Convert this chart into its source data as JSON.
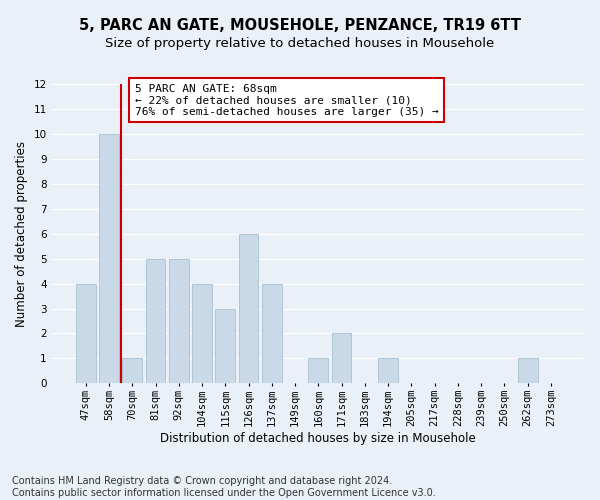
{
  "title": "5, PARC AN GATE, MOUSEHOLE, PENZANCE, TR19 6TT",
  "subtitle": "Size of property relative to detached houses in Mousehole",
  "xlabel": "Distribution of detached houses by size in Mousehole",
  "ylabel": "Number of detached properties",
  "bar_labels": [
    "47sqm",
    "58sqm",
    "70sqm",
    "81sqm",
    "92sqm",
    "104sqm",
    "115sqm",
    "126sqm",
    "137sqm",
    "149sqm",
    "160sqm",
    "171sqm",
    "183sqm",
    "194sqm",
    "205sqm",
    "217sqm",
    "228sqm",
    "239sqm",
    "250sqm",
    "262sqm",
    "273sqm"
  ],
  "bar_values": [
    4,
    10,
    1,
    5,
    5,
    4,
    3,
    6,
    4,
    0,
    1,
    2,
    0,
    1,
    0,
    0,
    0,
    0,
    0,
    1,
    0
  ],
  "bar_color": "#c9d9e8",
  "bar_edgecolor": "#a8bfd0",
  "vline_x": 1.5,
  "vline_color": "#cc0000",
  "annotation_text": "5 PARC AN GATE: 68sqm\n← 22% of detached houses are smaller (10)\n76% of semi-detached houses are larger (35) →",
  "annotation_box_edgecolor": "#cc0000",
  "annotation_box_facecolor": "#ffffff",
  "ylim": [
    0,
    12
  ],
  "yticks": [
    0,
    1,
    2,
    3,
    4,
    5,
    6,
    7,
    8,
    9,
    10,
    11,
    12
  ],
  "footer_line1": "Contains HM Land Registry data © Crown copyright and database right 2024.",
  "footer_line2": "Contains public sector information licensed under the Open Government Licence v3.0.",
  "background_color": "#eaf0f8",
  "plot_background": "#eaf0f8",
  "grid_color": "#ffffff",
  "title_fontsize": 10.5,
  "subtitle_fontsize": 9.5,
  "axis_label_fontsize": 8.5,
  "tick_fontsize": 7.5,
  "annotation_fontsize": 8,
  "footer_fontsize": 7
}
